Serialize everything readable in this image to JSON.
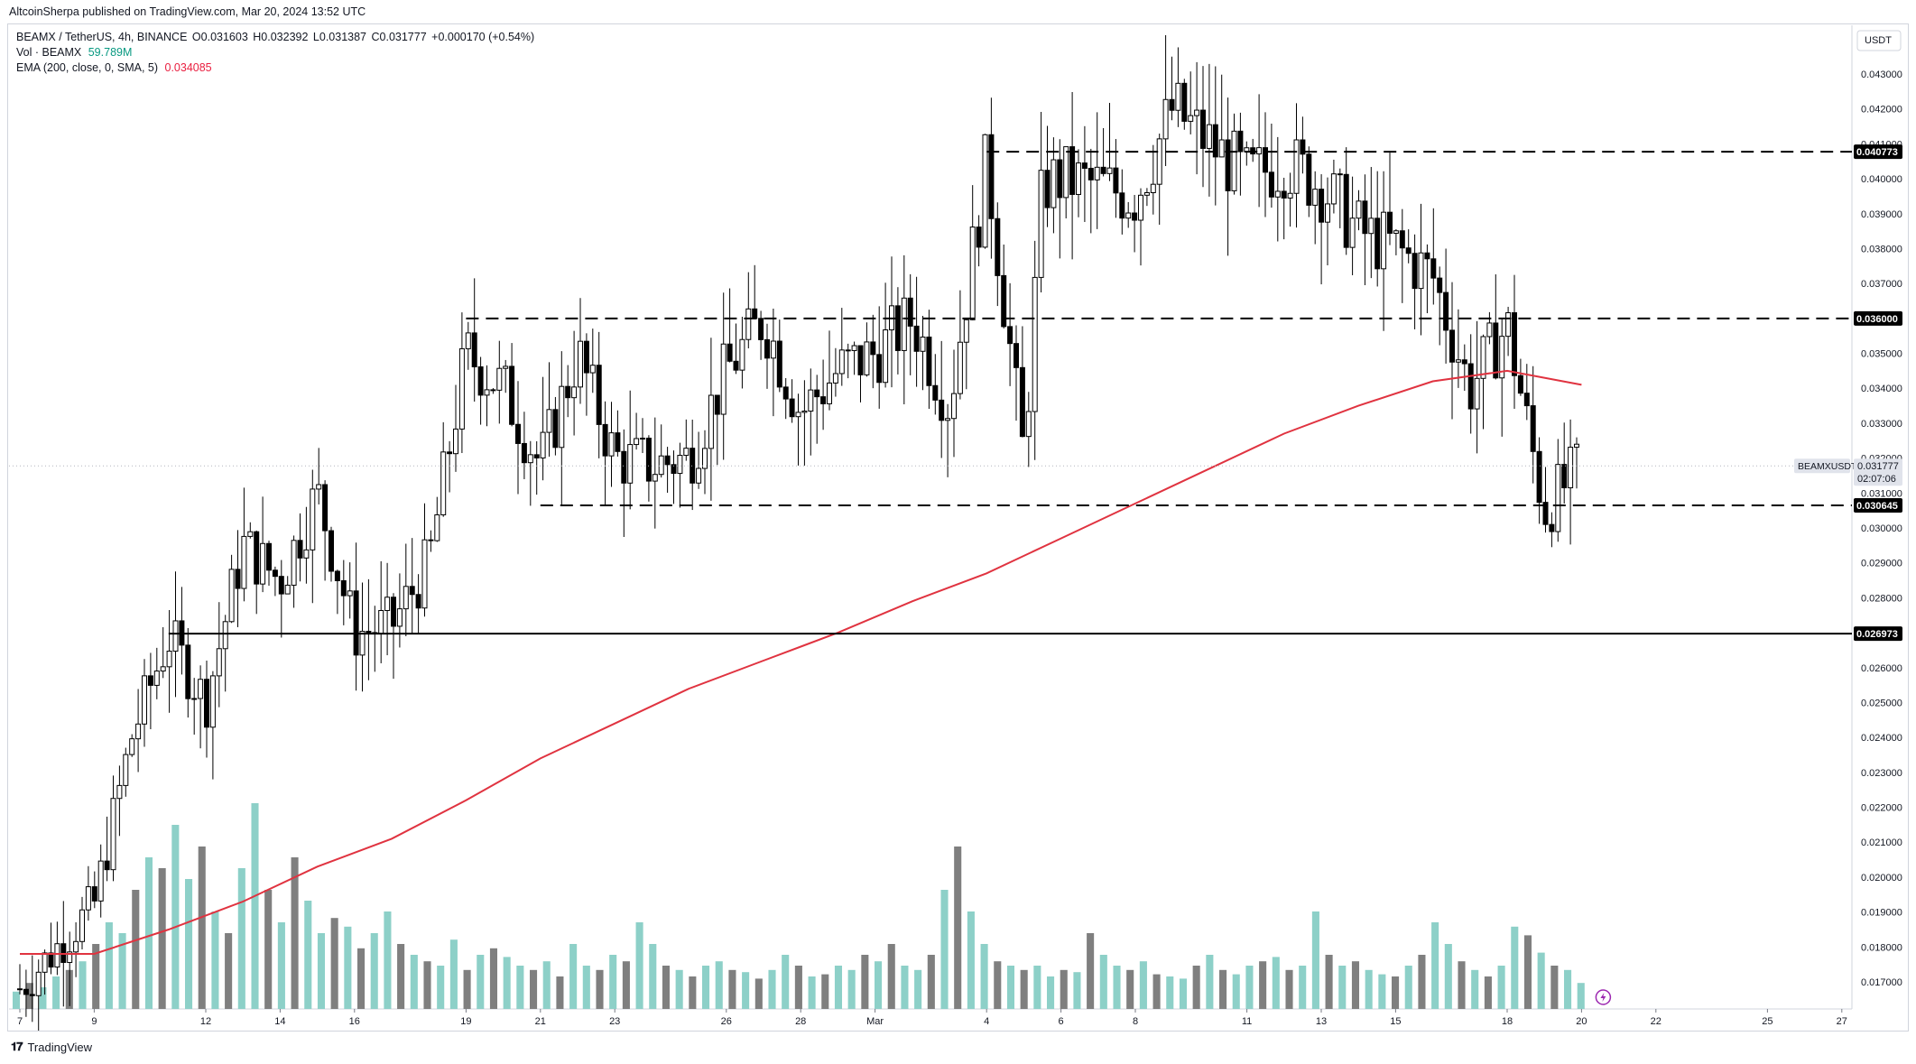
{
  "header": {
    "publish_line": "AltcoinSherpa published on TradingView.com, Mar 20, 2024 13:52 UTC"
  },
  "legend": {
    "symbol": "BEAMX / TetherUS, 4h, BINANCE",
    "ohlc": {
      "o": "O0.031603",
      "h": "H0.032392",
      "l": "L0.031387",
      "c": "C0.031777",
      "chg": "+0.000170 (+0.54%)"
    },
    "vol_label": "Vol · BEAMX",
    "vol_value": "59.789M",
    "ema_label": "EMA (200, close, 0, SMA, 5)",
    "ema_value": "0.034085"
  },
  "footer": {
    "brand": "TradingView"
  },
  "colors": {
    "up": "#ffffff",
    "down": "#000000",
    "ema": "#e03340",
    "vol_up": "#8dd0c8",
    "vol_down": "#7f7f7f"
  },
  "chart_data": {
    "type": "line",
    "title": "",
    "quote_currency": "USDT",
    "y_ticks": [
      "0.017000",
      "0.018000",
      "0.019000",
      "0.020000",
      "0.021000",
      "0.022000",
      "0.023000",
      "0.024000",
      "0.025000",
      "0.026000",
      "0.027000",
      "0.028000",
      "0.029000",
      "0.030000",
      "0.031000",
      "0.032000",
      "0.033000",
      "0.034000",
      "0.035000",
      "0.036000",
      "0.037000",
      "0.038000",
      "0.039000",
      "0.040000",
      "0.041000",
      "0.042000",
      "0.043000"
    ],
    "x_ticks": [
      "7",
      "9",
      "12",
      "14",
      "16",
      "19",
      "21",
      "23",
      "26",
      "28",
      "Mar",
      "4",
      "6",
      "8",
      "11",
      "13",
      "15",
      "18",
      "20",
      "22",
      "25",
      "27"
    ],
    "ylim": [
      0.0165,
      0.044
    ],
    "levels": [
      {
        "value": 0.040773,
        "label": "0.040773",
        "style": "dashed",
        "from": "Mar 4"
      },
      {
        "value": 0.036,
        "label": "0.036000",
        "style": "dashed",
        "from": "Feb 19"
      },
      {
        "value": 0.030645,
        "label": "0.030645",
        "style": "dashed",
        "from": "Feb 21"
      },
      {
        "value": 0.026973,
        "label": "0.026973",
        "style": "solid",
        "from": "Feb 11"
      }
    ],
    "last_price": {
      "symbol": "BEAMXUSDT",
      "price": "0.031777",
      "countdown": "02:07:06"
    },
    "ema_series": {
      "name": "EMA (200, close, 0, SMA, 5)",
      "points": [
        [
          "Feb 7",
          0.0178
        ],
        [
          "Feb 9",
          0.0178
        ],
        [
          "Feb 11",
          0.0185
        ],
        [
          "Feb 13",
          0.0193
        ],
        [
          "Feb 15",
          0.0203
        ],
        [
          "Feb 17",
          0.0211
        ],
        [
          "Feb 19",
          0.0222
        ],
        [
          "Feb 21",
          0.0234
        ],
        [
          "Feb 23",
          0.0244
        ],
        [
          "Feb 25",
          0.0254
        ],
        [
          "Feb 27",
          0.0262
        ],
        [
          "Feb 29",
          0.027
        ],
        [
          "Mar 2",
          0.0279
        ],
        [
          "Mar 4",
          0.0287
        ],
        [
          "Mar 6",
          0.0297
        ],
        [
          "Mar 8",
          0.0307
        ],
        [
          "Mar 10",
          0.0317
        ],
        [
          "Mar 12",
          0.0327
        ],
        [
          "Mar 14",
          0.0335
        ],
        [
          "Mar 16",
          0.0342
        ],
        [
          "Mar 18",
          0.0345
        ],
        [
          "Mar 20",
          0.0341
        ]
      ]
    },
    "price_path": [
      [
        "Feb 7",
        0.0168
      ],
      [
        "Feb 9",
        0.0192
      ],
      [
        "Feb 10",
        0.024
      ],
      [
        "Feb 11",
        0.0269
      ],
      [
        "Feb 12",
        0.025
      ],
      [
        "Feb 13",
        0.0295
      ],
      [
        "Feb 14",
        0.0285
      ],
      [
        "Feb 15",
        0.031
      ],
      [
        "Feb 16",
        0.027
      ],
      [
        "Feb 17",
        0.0272
      ],
      [
        "Feb 18",
        0.029
      ],
      [
        "Feb 19",
        0.035
      ],
      [
        "Feb 20",
        0.034
      ],
      [
        "Feb 21",
        0.0318
      ],
      [
        "Feb 22",
        0.035
      ],
      [
        "Feb 23",
        0.032
      ],
      [
        "Feb 24",
        0.0318
      ],
      [
        "Feb 25",
        0.032
      ],
      [
        "Feb 26",
        0.0345
      ],
      [
        "Feb 27",
        0.036
      ],
      [
        "Feb 28",
        0.0333
      ],
      [
        "Feb 29",
        0.0345
      ],
      [
        "Mar 1",
        0.035
      ],
      [
        "Mar 2",
        0.036
      ],
      [
        "Mar 3",
        0.0335
      ],
      [
        "Mar 4",
        0.0405
      ],
      [
        "Mar 5",
        0.032
      ],
      [
        "Mar 5.5",
        0.0398
      ],
      [
        "Mar 6",
        0.04
      ],
      [
        "Mar 7",
        0.0398
      ],
      [
        "Mar 8",
        0.0395
      ],
      [
        "Mar 9",
        0.042
      ],
      [
        "Mar 10",
        0.041
      ],
      [
        "Mar 11",
        0.04
      ],
      [
        "Mar 12",
        0.0405
      ],
      [
        "Mar 13",
        0.0398
      ],
      [
        "Mar 14",
        0.0385
      ],
      [
        "Mar 15",
        0.038
      ],
      [
        "Mar 16",
        0.0372
      ],
      [
        "Mar 17",
        0.034
      ],
      [
        "Mar 18",
        0.0358
      ],
      [
        "Mar 19",
        0.0305
      ],
      [
        "Mar 20",
        0.0318
      ]
    ],
    "volume_heights": [
      0.08,
      0.12,
      0.1,
      0.15,
      0.18,
      0.22,
      0.3,
      0.4,
      0.35,
      0.55,
      0.7,
      0.65,
      0.85,
      0.6,
      0.75,
      0.45,
      0.35,
      0.65,
      0.95,
      0.55,
      0.4,
      0.7,
      0.5,
      0.35,
      0.42,
      0.38,
      0.28,
      0.35,
      0.45,
      0.3,
      0.25,
      0.22,
      0.2,
      0.32,
      0.18,
      0.25,
      0.28,
      0.24,
      0.2,
      0.18,
      0.22,
      0.15,
      0.3,
      0.2,
      0.18,
      0.25,
      0.22,
      0.4,
      0.3,
      0.2,
      0.18,
      0.15,
      0.2,
      0.22,
      0.18,
      0.17,
      0.14,
      0.18,
      0.25,
      0.2,
      0.15,
      0.16,
      0.2,
      0.18,
      0.25,
      0.22,
      0.3,
      0.2,
      0.18,
      0.25,
      0.55,
      0.75,
      0.45,
      0.3,
      0.22,
      0.2,
      0.18,
      0.2,
      0.15,
      0.18,
      0.17,
      0.35,
      0.25,
      0.2,
      0.18,
      0.22,
      0.16,
      0.15,
      0.14,
      0.2,
      0.25,
      0.18,
      0.16,
      0.2,
      0.22,
      0.24,
      0.18,
      0.2,
      0.45,
      0.25,
      0.2,
      0.22,
      0.18,
      0.16,
      0.15,
      0.2,
      0.25,
      0.4,
      0.3,
      0.22,
      0.18,
      0.15,
      0.2,
      0.38,
      0.34,
      0.26,
      0.2,
      0.18,
      0.12
    ]
  }
}
